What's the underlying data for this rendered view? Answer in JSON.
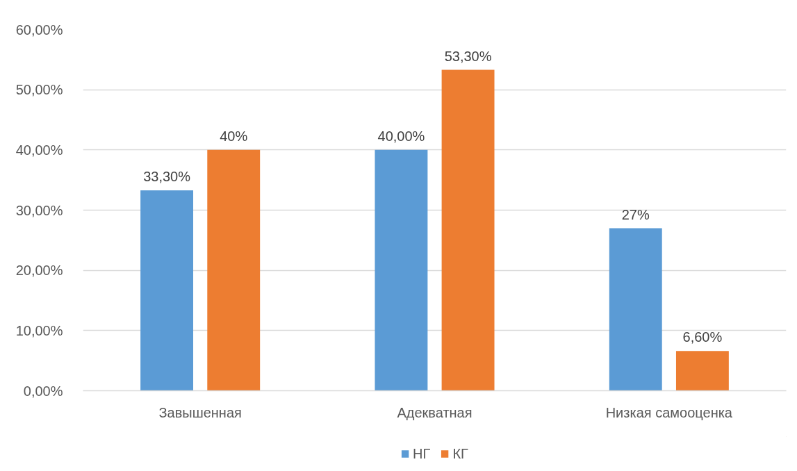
{
  "chart_data": {
    "type": "bar",
    "categories": [
      "Завышенная",
      "Адекватная",
      "Низкая самооценка"
    ],
    "series": [
      {
        "name": "НГ",
        "color": "#5b9bd5",
        "values": [
          33.3,
          40,
          27
        ],
        "value_labels": [
          "33,30%",
          "40,00%",
          "27%"
        ]
      },
      {
        "name": "КГ",
        "color": "#ed7d31",
        "values": [
          40,
          53.3,
          6.6
        ],
        "value_labels": [
          "40%",
          "53,30%",
          "6,60%"
        ]
      }
    ],
    "ylim": [
      0,
      60
    ],
    "yticks": [
      {
        "value": 0,
        "label": "0,00%"
      },
      {
        "value": 10,
        "label": "10,00%"
      },
      {
        "value": 20,
        "label": "20,00%"
      },
      {
        "value": 30,
        "label": "30,00%"
      },
      {
        "value": 40,
        "label": "40,00%"
      },
      {
        "value": 50,
        "label": "50,00%"
      },
      {
        "value": 60,
        "label": "60,00%"
      }
    ],
    "grid": "y",
    "legend": "bottom"
  }
}
